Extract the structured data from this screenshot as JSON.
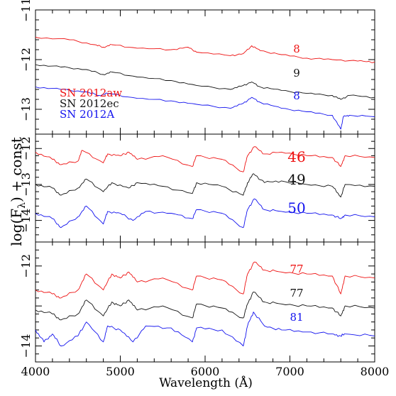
{
  "figure": {
    "xlabel": "Wavelength (Å)",
    "ylabel_parts": [
      "log(F",
      "λ",
      ") + const"
    ]
  },
  "legend": [
    {
      "label": "SN 2012aw",
      "color": "#ee1111"
    },
    {
      "label": "SN 2012ec",
      "color": "#111111"
    },
    {
      "label": "SN 2012A",
      "color": "#1111ee"
    }
  ],
  "chart_data": [
    {
      "type": "line",
      "panel": "top",
      "xlim": [
        4000,
        8000
      ],
      "ylim": [
        -13.5,
        -11.0
      ],
      "x_ticks": [
        "4000",
        "5000",
        "6000",
        "7000",
        "8000"
      ],
      "y_ticks": [
        {
          "label": "−11",
          "value": -11
        },
        {
          "label": "−12",
          "value": -12
        },
        {
          "label": "−13",
          "value": -13
        }
      ],
      "series": [
        {
          "name": "SN 2012aw",
          "color": "#ee1111",
          "epoch": "8",
          "x": [
            4000,
            4400,
            4700,
            4800,
            4900,
            5200,
            5600,
            5800,
            5900,
            6300,
            6450,
            6550,
            6650,
            6900,
            7200,
            7500,
            7800,
            8000
          ],
          "y": [
            -11.55,
            -11.6,
            -11.7,
            -11.75,
            -11.7,
            -11.77,
            -11.8,
            -11.75,
            -11.85,
            -11.92,
            -11.88,
            -11.72,
            -11.82,
            -11.9,
            -11.97,
            -12.0,
            -12.03,
            -12.05
          ]
        },
        {
          "name": "SN 2012ec",
          "color": "#111111",
          "epoch": "9",
          "x": [
            4000,
            4300,
            4600,
            4800,
            4900,
            5200,
            5600,
            5900,
            6300,
            6450,
            6550,
            6650,
            6900,
            7200,
            7500,
            7600,
            7700,
            8000
          ],
          "y": [
            -12.1,
            -12.15,
            -12.2,
            -12.3,
            -12.25,
            -12.35,
            -12.42,
            -12.52,
            -12.6,
            -12.52,
            -12.45,
            -12.55,
            -12.62,
            -12.68,
            -12.72,
            -12.8,
            -12.72,
            -12.76
          ]
        },
        {
          "name": "SN 2012A",
          "color": "#1111ee",
          "epoch": "8",
          "x": [
            4000,
            4300,
            4600,
            4750,
            4850,
            5200,
            5600,
            5900,
            6300,
            6450,
            6550,
            6650,
            6900,
            7200,
            7500,
            7600,
            7630,
            7700,
            8000
          ],
          "y": [
            -12.55,
            -12.6,
            -12.65,
            -12.72,
            -12.68,
            -12.78,
            -12.83,
            -12.9,
            -12.98,
            -12.88,
            -12.76,
            -12.86,
            -12.98,
            -13.05,
            -13.12,
            -13.4,
            -13.15,
            -13.12,
            -13.15
          ]
        }
      ]
    },
    {
      "type": "line",
      "panel": "middle",
      "xlim": [
        4000,
        8000
      ],
      "ylim": [
        -14.6,
        -11.6
      ],
      "x_ticks": [
        "4000",
        "5000",
        "6000",
        "7000",
        "8000"
      ],
      "y_ticks": [
        {
          "label": "−12",
          "value": -12
        },
        {
          "label": "−13",
          "value": -13
        },
        {
          "label": "−14",
          "value": -14
        }
      ],
      "series": [
        {
          "name": "SN 2012aw",
          "color": "#ee1111",
          "epoch": "46",
          "x": [
            4000,
            4200,
            4300,
            4500,
            4550,
            4800,
            4850,
            5000,
            5100,
            5200,
            5500,
            5850,
            5900,
            6200,
            6450,
            6500,
            6580,
            6700,
            6900,
            7200,
            7500,
            7600,
            7650,
            8000
          ],
          "y": [
            -12.1,
            -12.3,
            -12.45,
            -12.35,
            -12.05,
            -12.4,
            -12.15,
            -12.2,
            -12.1,
            -12.3,
            -12.2,
            -12.5,
            -12.2,
            -12.3,
            -12.65,
            -12.2,
            -11.95,
            -12.15,
            -12.1,
            -12.2,
            -12.25,
            -12.5,
            -12.2,
            -12.25
          ]
        },
        {
          "name": "SN 2012ec",
          "color": "#111111",
          "epoch": "49",
          "x": [
            4000,
            4200,
            4300,
            4500,
            4600,
            4800,
            4900,
            5100,
            5200,
            5500,
            5850,
            5900,
            6200,
            6450,
            6500,
            6570,
            6700,
            6900,
            7200,
            7500,
            7600,
            7650,
            8000
          ],
          "y": [
            -13.0,
            -13.1,
            -13.3,
            -13.1,
            -12.85,
            -13.2,
            -12.95,
            -13.1,
            -12.95,
            -13.05,
            -13.25,
            -12.95,
            -13.05,
            -13.3,
            -12.95,
            -12.7,
            -12.95,
            -12.9,
            -13.0,
            -13.05,
            -13.35,
            -13.0,
            -13.05
          ]
        },
        {
          "name": "SN 2012A",
          "color": "#1111ee",
          "epoch": "50",
          "x": [
            4000,
            4200,
            4300,
            4500,
            4600,
            4800,
            4850,
            5000,
            5150,
            5300,
            5600,
            5850,
            5900,
            6200,
            6450,
            6500,
            6580,
            6700,
            6900,
            7200,
            7500,
            7600,
            7650,
            8000
          ],
          "y": [
            -13.8,
            -13.95,
            -14.2,
            -13.9,
            -13.6,
            -14.1,
            -13.75,
            -13.8,
            -14.0,
            -13.75,
            -13.8,
            -13.95,
            -13.7,
            -13.8,
            -14.2,
            -13.7,
            -13.4,
            -13.7,
            -13.75,
            -13.8,
            -13.85,
            -13.95,
            -13.85,
            -13.9
          ]
        }
      ]
    },
    {
      "type": "line",
      "panel": "bottom",
      "xlim": [
        4000,
        8000
      ],
      "ylim": [
        -14.4,
        -11.4
      ],
      "x_ticks": [
        "4000",
        "5000",
        "6000",
        "7000",
        "8000"
      ],
      "y_ticks": [
        {
          "label": "−12",
          "value": -12
        },
        {
          "label": "−14",
          "value": -14
        }
      ],
      "series": [
        {
          "name": "SN 2012aw",
          "color": "#ee1111",
          "epoch": "77",
          "x": [
            4000,
            4200,
            4300,
            4500,
            4600,
            4800,
            4900,
            5000,
            5100,
            5200,
            5500,
            5850,
            5900,
            6200,
            6450,
            6500,
            6580,
            6700,
            6900,
            7200,
            7500,
            7600,
            7650,
            8000
          ],
          "y": [
            -12.6,
            -12.7,
            -12.8,
            -12.6,
            -12.2,
            -12.6,
            -12.2,
            -12.3,
            -12.15,
            -12.4,
            -12.3,
            -12.6,
            -12.25,
            -12.35,
            -12.7,
            -12.2,
            -11.9,
            -12.1,
            -12.15,
            -12.2,
            -12.25,
            -12.7,
            -12.25,
            -12.3
          ]
        },
        {
          "name": "SN 2012ec",
          "color": "#111111",
          "epoch": "77",
          "x": [
            4000,
            4200,
            4300,
            4500,
            4600,
            4800,
            4900,
            5000,
            5100,
            5200,
            5500,
            5850,
            5900,
            6200,
            6450,
            6500,
            6570,
            6700,
            6900,
            7200,
            7500,
            7600,
            7650,
            8000
          ],
          "y": [
            -13.1,
            -13.2,
            -13.35,
            -13.2,
            -12.85,
            -13.25,
            -12.9,
            -13.0,
            -12.85,
            -13.1,
            -13.0,
            -13.3,
            -12.95,
            -13.05,
            -13.3,
            -12.95,
            -12.65,
            -12.9,
            -12.95,
            -13.0,
            -13.05,
            -13.25,
            -13.0,
            -13.05
          ]
        },
        {
          "name": "SN 2012A",
          "color": "#1111ee",
          "epoch": "81",
          "x": [
            4000,
            4100,
            4200,
            4300,
            4500,
            4600,
            4800,
            4850,
            5000,
            5150,
            5300,
            5600,
            5850,
            5900,
            6200,
            6450,
            6500,
            6570,
            6700,
            6900,
            7200,
            7500,
            7600,
            7650,
            8000
          ],
          "y": [
            -13.6,
            -13.9,
            -13.7,
            -14.0,
            -13.75,
            -13.4,
            -13.9,
            -13.5,
            -13.6,
            -13.9,
            -13.5,
            -13.55,
            -13.9,
            -13.55,
            -13.6,
            -14.0,
            -13.5,
            -13.15,
            -13.5,
            -13.6,
            -13.65,
            -13.7,
            -13.75,
            -13.7,
            -13.75
          ]
        }
      ]
    }
  ]
}
